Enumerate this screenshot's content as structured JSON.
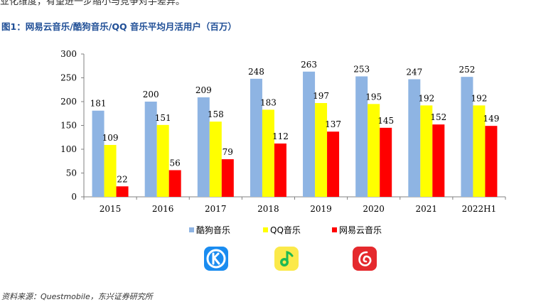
{
  "header": {
    "top_clip": "业化维度，有望进一步缩小与竞争对手差异。",
    "figure_title": "图1：网易云音乐/酷狗音乐/QQ 音乐平均月活用户（百万）"
  },
  "footer": {
    "source": "资料来源：Questmobile，东兴证券研究所"
  },
  "icons": {
    "kugou": "kugou-app-icon",
    "qq": "qq-music-app-icon",
    "netease": "netease-cloud-music-app-icon"
  },
  "chart_data": {
    "type": "bar",
    "categories": [
      "2015",
      "2016",
      "2017",
      "2018",
      "2019",
      "2020",
      "2021",
      "2022H1"
    ],
    "series": [
      {
        "name": "酷狗音乐",
        "values": [
          181,
          200,
          209,
          248,
          263,
          253,
          247,
          252
        ],
        "color": "#8eb4e3"
      },
      {
        "name": "QQ音乐",
        "values": [
          109,
          151,
          158,
          183,
          197,
          195,
          192,
          192
        ],
        "color": "#ffff00"
      },
      {
        "name": "网易云音乐",
        "values": [
          22,
          56,
          79,
          112,
          137,
          145,
          152,
          149
        ],
        "color": "#ff0000"
      }
    ],
    "ylim": [
      0,
      300
    ],
    "yticks": [
      0,
      50,
      100,
      150,
      200,
      250,
      300
    ],
    "grid": false,
    "legend_position": "bottom",
    "data_labels": true
  }
}
